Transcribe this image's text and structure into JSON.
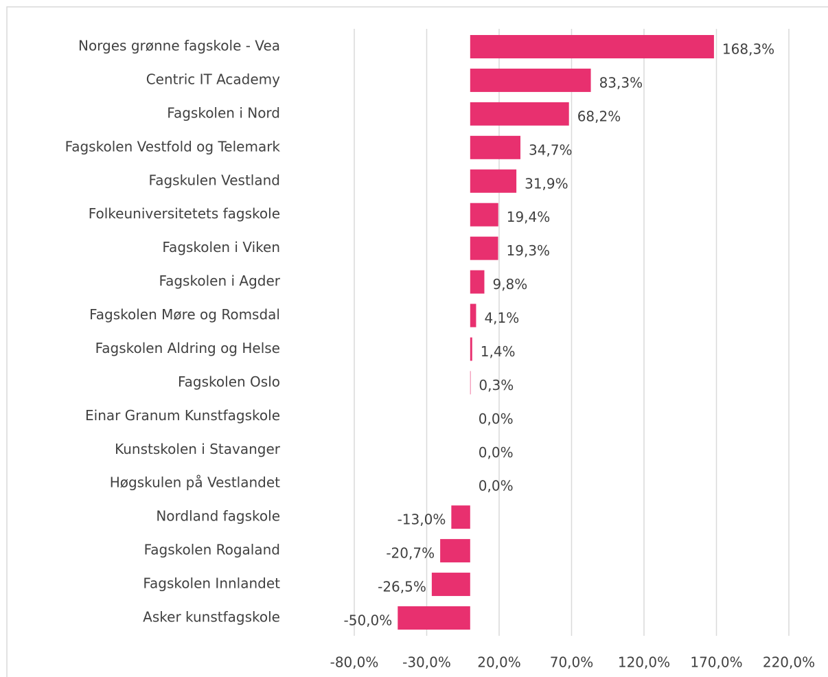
{
  "chart_data": {
    "type": "hbar",
    "categories": [
      "Norges grønne fagskole - Vea",
      "Centric IT Academy",
      "Fagskolen i Nord",
      "Fagskolen Vestfold og Telemark",
      "Fagskulen Vestland",
      "Folkeuniversitetets fagskole",
      "Fagskolen i Viken",
      "Fagskolen i Agder",
      "Fagskolen Møre og Romsdal",
      "Fagskolen Aldring og Helse",
      "Fagskolen Oslo",
      "Einar Granum Kunstfagskole",
      "Kunstskolen i Stavanger",
      "Høgskulen på Vestlandet",
      "Nordland fagskole",
      "Fagskolen Rogaland",
      "Fagskolen Innlandet",
      "Asker kunstfagskole"
    ],
    "values": [
      168.3,
      83.3,
      68.2,
      34.7,
      31.9,
      19.4,
      19.3,
      9.8,
      4.1,
      1.4,
      0.3,
      0.0,
      0.0,
      0.0,
      -13.0,
      -20.7,
      -26.5,
      -50.0
    ],
    "value_labels": [
      "168,3%",
      "83,3%",
      "68,2%",
      "34,7%",
      "31,9%",
      "19,4%",
      "19,3%",
      "9,8%",
      "4,1%",
      "1,4%",
      "0,3%",
      "0,0%",
      "0,0%",
      "0,0%",
      "-13,0%",
      "-20,7%",
      "-26,5%",
      "-50,0%"
    ],
    "color": "#e8306f",
    "xlim": [
      -80,
      220
    ],
    "xticks": [
      {
        "value": -80,
        "label": "-80,0%"
      },
      {
        "value": -30,
        "label": "-30,0%"
      },
      {
        "value": 20,
        "label": "20,0%"
      },
      {
        "value": 70,
        "label": "70,0%"
      },
      {
        "value": 120,
        "label": "120,0%"
      },
      {
        "value": 170,
        "label": "170,0%"
      },
      {
        "value": 220,
        "label": "220,0%"
      }
    ],
    "grid": true
  }
}
